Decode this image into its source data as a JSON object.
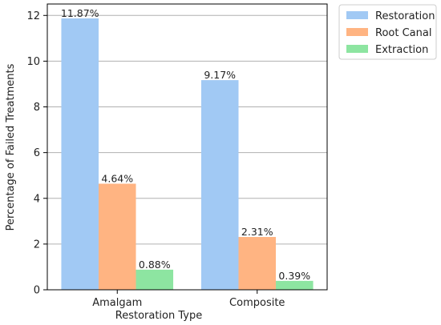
{
  "chart_data": {
    "type": "bar",
    "title": "",
    "xlabel": "Restoration Type",
    "ylabel": "Percentage of Failed Treatments",
    "categories": [
      "Amalgam",
      "Composite"
    ],
    "series": [
      {
        "name": "Restoration",
        "values": [
          11.87,
          9.17
        ],
        "labels": [
          "11.87%",
          "9.17%"
        ],
        "color": "#a1c9f4"
      },
      {
        "name": "Root Canal",
        "values": [
          4.64,
          2.31
        ],
        "labels": [
          "4.64%",
          "2.31%"
        ],
        "color": "#ffb482"
      },
      {
        "name": "Extraction",
        "values": [
          0.88,
          0.39
        ],
        "labels": [
          "0.88%",
          "0.39%"
        ],
        "color": "#8de5a1"
      }
    ],
    "ylim": [
      0,
      12.5
    ],
    "yticks": [
      0,
      2,
      4,
      6,
      8,
      10,
      12
    ],
    "grid": "horizontal",
    "legend": "outside-top-right"
  }
}
